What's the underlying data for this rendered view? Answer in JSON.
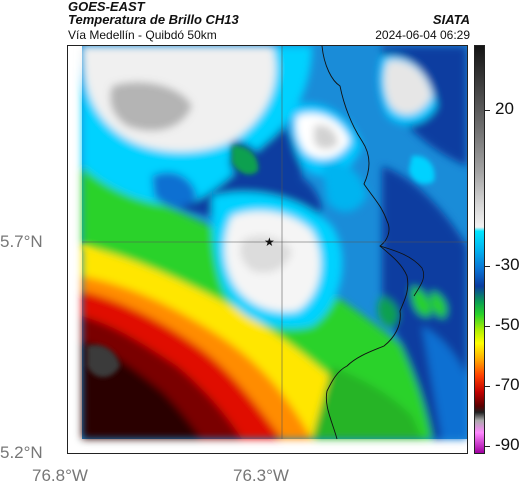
{
  "header": {
    "satellite": "GOES-EAST",
    "product": "Temperatura de Brillo CH13",
    "region": "Vía Medellín - Quibdó 50km",
    "org": "SIATA",
    "timestamp": "2024-06-04 06:29"
  },
  "axes": {
    "lat_labels": [
      "5.7°N",
      "5.2°N"
    ],
    "lon_labels": [
      "76.8°W",
      "76.3°W"
    ]
  },
  "colorbar": {
    "tick_labels": [
      "20",
      "-30",
      "-50",
      "-70",
      "-90"
    ]
  },
  "markers": {
    "center_symbol": "star-icon"
  }
}
